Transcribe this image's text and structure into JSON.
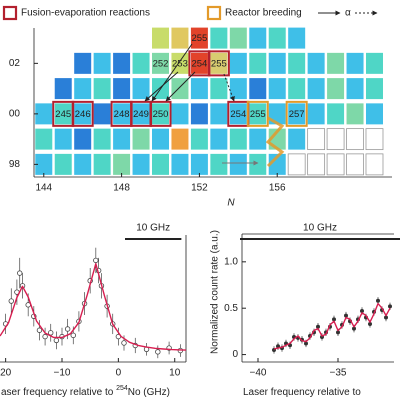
{
  "chart_data": [
    {
      "type": "nuclide-grid",
      "legend": [
        {
          "label": "Fusion-evaporation reactions",
          "color": "#b3202e",
          "style": "box"
        },
        {
          "label": "Reactor breeding",
          "color": "#e39a2a",
          "style": "box"
        },
        {
          "label": "α",
          "color": "#222222",
          "style": "arrow"
        },
        {
          "label": null,
          "color": "#222222",
          "style": "dotted-arrow"
        }
      ],
      "xlabel": "N",
      "xlim": [
        143.6,
        161.9
      ],
      "xticks": [
        144,
        148,
        152,
        156
      ],
      "ylim": [
        97.5,
        103.4
      ],
      "yticks": [
        {
          "value": 102,
          "label": "02"
        },
        {
          "value": 100,
          "label": "00"
        },
        98
      ],
      "rows": [
        {
          "z": 103,
          "n": [
            150,
            151,
            152,
            153,
            154,
            155,
            156,
            157
          ],
          "colors": [
            "#c8dc6a",
            "#e0c860",
            "#e2432a",
            "#4fd6c6",
            "#7ed8a8",
            "#3fbfe8",
            "#4fd6c6",
            "#3fbfe8"
          ]
        },
        {
          "z": 102,
          "n": [
            146,
            147,
            148,
            149,
            150,
            151,
            152,
            153,
            154,
            155,
            156,
            157,
            158,
            159,
            160,
            161
          ],
          "colors": [
            "#2a7fd8",
            "#3fbfe8",
            "#2a7fd8",
            "#4fd6c6",
            "#7ed8a8",
            "#c8dc6a",
            "#e2432a",
            "#d8cc70",
            "#3fbfe8",
            "#4fd6c6",
            "#3fbfe8",
            "#4fd6c6",
            "#3fbfe8",
            "#7ed8a8",
            "#3fbfe8",
            "#4fd6c6"
          ]
        },
        {
          "z": 101,
          "n": [
            145,
            146,
            147,
            148,
            149,
            150,
            151,
            152,
            153,
            154,
            155,
            156,
            157,
            158,
            159,
            160,
            161
          ],
          "colors": [
            "#2a7fd8",
            "#3fbfe8",
            "#4fd6c6",
            "#2a7fd8",
            "#3fbfe8",
            "#4fd6c6",
            "#7ed8a8",
            "#3fbfe8",
            "#4fd6c6",
            "#3fbfe8",
            "#2a7fd8",
            "#3fbfe8",
            "#4fd6c6",
            "#3fbfe8",
            "#7ed8a8",
            "#3fbfe8",
            "#4fd6c6"
          ]
        },
        {
          "z": 100,
          "n": [
            144,
            145,
            146,
            147,
            148,
            149,
            150,
            151,
            152,
            153,
            154,
            155,
            156,
            157,
            158,
            159,
            160,
            161
          ],
          "colors": [
            "#3fbfe8",
            "#4fd6c6",
            "#3fbfe8",
            "#2a7fd8",
            "#3fbfe8",
            "#3fbfe8",
            "#4fd6c6",
            "#3fbfe8",
            "#2a7fd8",
            "#3fbfe8",
            "#3fbfe8",
            "#4fd6c6",
            "#3fbfe8",
            "#3fbfe8",
            "#3fbfe8",
            "#4fd6c6",
            "#7ed8a8",
            "#3fbfe8"
          ]
        },
        {
          "z": 99,
          "n": [
            144,
            145,
            146,
            147,
            148,
            149,
            150,
            151,
            152,
            153,
            154,
            155,
            156,
            157,
            158,
            159,
            160,
            161
          ],
          "colors": [
            "#4fd6c6",
            "#3fbfe8",
            "#2a7fd8",
            "#4fd6c6",
            "#3fbfe8",
            "#7ed8a8",
            "#3fbfe8",
            "#f0a040",
            "#4fd6c6",
            "#3fbfe8",
            "#4fd6c6",
            "#3fbfe8",
            "#7ed8a8",
            "#3fbfe8",
            "#ffffff",
            "#ffffff",
            "#ffffff",
            "#ffffff"
          ]
        },
        {
          "z": 98,
          "n": [
            144,
            145,
            146,
            147,
            148,
            149,
            150,
            151,
            152,
            153,
            154,
            155,
            156,
            157,
            158,
            159,
            160,
            161
          ],
          "colors": [
            "#3fbfe8",
            "#4fd6c6",
            "#3fbfe8",
            "#4fd6c6",
            "#7ed8a8",
            "#3fbfe8",
            "#4fd6c6",
            "#3fbfe8",
            "#3fbfe8",
            "#4fd6c6",
            "#3fbfe8",
            "#4fd6c6",
            "#3fbfe8",
            "#ffffff",
            "#ffffff",
            "#ffffff",
            "#ffffff",
            "#ffffff"
          ]
        }
      ],
      "labels": [
        {
          "z": 103,
          "n": 152,
          "label": "255"
        },
        {
          "z": 102,
          "n": 150,
          "label": "252"
        },
        {
          "z": 102,
          "n": 151,
          "label": "253"
        },
        {
          "z": 102,
          "n": 152,
          "label": "254",
          "box": "#b3202e"
        },
        {
          "z": 102,
          "n": 153,
          "label": "255",
          "box": "#b3202e"
        },
        {
          "z": 100,
          "n": 145,
          "label": "245",
          "box": "#b3202e"
        },
        {
          "z": 100,
          "n": 146,
          "label": "246",
          "box": "#b3202e"
        },
        {
          "z": 100,
          "n": 148,
          "label": "248",
          "box": "#b3202e"
        },
        {
          "z": 100,
          "n": 149,
          "label": "249",
          "box": "#b3202e"
        },
        {
          "z": 100,
          "n": 150,
          "label": "250",
          "box": "#b3202e"
        },
        {
          "z": 100,
          "n": 154,
          "label": "254",
          "box": "#b3202e"
        },
        {
          "z": 100,
          "n": 155,
          "label": "255",
          "box": "#e39a2a"
        },
        {
          "z": 100,
          "n": 157,
          "label": "257",
          "box": "#e39a2a"
        }
      ]
    },
    {
      "type": "spectrum",
      "xlabel": [
        "aser frequency relative to ",
        "254",
        "No (GHz)"
      ],
      "xlim": [
        -21,
        12
      ],
      "xticks": [
        {
          "value": -20,
          "label": "20"
        },
        {
          "value": -10,
          "label": "−10"
        },
        0,
        10
      ],
      "ylim": [
        0,
        1
      ],
      "scale_bar": {
        "label": "10 GHz",
        "length": 10
      },
      "series": [
        {
          "style": "points",
          "color": "#444444",
          "x": [
            -20,
            -19,
            -18,
            -17.5,
            -17,
            -16,
            -15,
            -14,
            -13,
            -12,
            -11,
            -10,
            -9,
            -8,
            -7,
            -6,
            -5,
            -4,
            -3.5,
            -3,
            -2,
            -1,
            0,
            1,
            3,
            5,
            7,
            9,
            11
          ],
          "values": [
            0.3,
            0.48,
            0.55,
            0.7,
            0.6,
            0.45,
            0.36,
            0.25,
            0.2,
            0.23,
            0.17,
            0.2,
            0.26,
            0.21,
            0.32,
            0.46,
            0.64,
            0.8,
            0.72,
            0.6,
            0.44,
            0.3,
            0.2,
            0.15,
            0.13,
            0.1,
            0.08,
            0.11,
            0.09
          ],
          "errors": [
            0.08,
            0.1,
            0.1,
            0.12,
            0.1,
            0.09,
            0.08,
            0.08,
            0.07,
            0.07,
            0.07,
            0.07,
            0.08,
            0.07,
            0.08,
            0.09,
            0.1,
            0.1,
            0.1,
            0.1,
            0.09,
            0.08,
            0.07,
            0.06,
            0.06,
            0.05,
            0.05,
            0.05,
            0.05
          ]
        },
        {
          "style": "line",
          "color": "#d81e50",
          "x": [
            -21,
            -19.5,
            -18,
            -17,
            -16,
            -14.5,
            -13,
            -11.5,
            -10,
            -8.5,
            -7,
            -5.5,
            -4,
            -2.5,
            -1,
            0.5,
            2,
            3.5,
            5,
            6.5,
            8,
            9.5,
            11,
            12
          ],
          "values": [
            0.205,
            0.309,
            0.508,
            0.596,
            0.512,
            0.322,
            0.228,
            0.194,
            0.193,
            0.223,
            0.312,
            0.533,
            0.774,
            0.526,
            0.298,
            0.2,
            0.155,
            0.131,
            0.117,
            0.108,
            0.102,
            0.098,
            0.095,
            0.094
          ]
        }
      ]
    },
    {
      "type": "spectrum",
      "xlabel": [
        "Laser frequency relative to"
      ],
      "ylabel": "Normalized count rate (a.u.)",
      "xlim": [
        -41,
        -31.5
      ],
      "xticks": [
        {
          "value": -40,
          "label": "−40"
        },
        {
          "value": -35,
          "label": "−35"
        }
      ],
      "ylim": [
        -0.08,
        1.3
      ],
      "yticks": [
        0,
        0.5,
        {
          "value": 1,
          "label": "1.0"
        }
      ],
      "scale_bar": {
        "label": "10 GHz",
        "length": 10
      },
      "series": [
        {
          "style": "points",
          "color": "#333333",
          "x": [
            -39,
            -38.75,
            -38.5,
            -38.25,
            -38,
            -37.75,
            -37.5,
            -37.25,
            -37,
            -36.75,
            -36.5,
            -36.25,
            -36,
            -35.75,
            -35.5,
            -35.25,
            -35,
            -34.75,
            -34.5,
            -34.25,
            -34,
            -33.75,
            -33.5,
            -33.25,
            -33,
            -32.75,
            -32.5,
            -32.25,
            -32,
            -31.75
          ],
          "values": [
            0.05,
            0.09,
            0.07,
            0.12,
            0.1,
            0.19,
            0.18,
            0.16,
            0.12,
            0.2,
            0.24,
            0.3,
            0.19,
            0.24,
            0.3,
            0.38,
            0.24,
            0.32,
            0.42,
            0.36,
            0.28,
            0.38,
            0.47,
            0.4,
            0.33,
            0.46,
            0.58,
            0.48,
            0.4,
            0.52
          ],
          "errors": [
            0.04,
            0.04,
            0.04,
            0.04,
            0.04,
            0.04,
            0.04,
            0.04,
            0.04,
            0.04,
            0.04,
            0.04,
            0.04,
            0.04,
            0.04,
            0.04,
            0.04,
            0.04,
            0.04,
            0.04,
            0.04,
            0.04,
            0.04,
            0.04,
            0.04,
            0.04,
            0.04,
            0.04,
            0.04,
            0.04
          ]
        },
        {
          "style": "line",
          "color": "#d81e50",
          "x": [
            -39,
            -38.75,
            -38.5,
            -38.25,
            -38,
            -37.75,
            -37.5,
            -37.25,
            -37,
            -36.75,
            -36.5,
            -36.25,
            -36,
            -35.75,
            -35.5,
            -35.25,
            -35,
            -34.75,
            -34.5,
            -34.25,
            -34,
            -33.75,
            -33.5,
            -33.25,
            -33,
            -32.75,
            -32.5,
            -32.25,
            -32,
            -31.75
          ],
          "values": [
            0.06,
            0.07,
            0.08,
            0.1,
            0.12,
            0.17,
            0.2,
            0.15,
            0.14,
            0.18,
            0.26,
            0.28,
            0.2,
            0.22,
            0.32,
            0.36,
            0.26,
            0.3,
            0.4,
            0.38,
            0.3,
            0.36,
            0.45,
            0.42,
            0.35,
            0.44,
            0.55,
            0.5,
            0.42,
            0.5
          ]
        }
      ]
    }
  ]
}
